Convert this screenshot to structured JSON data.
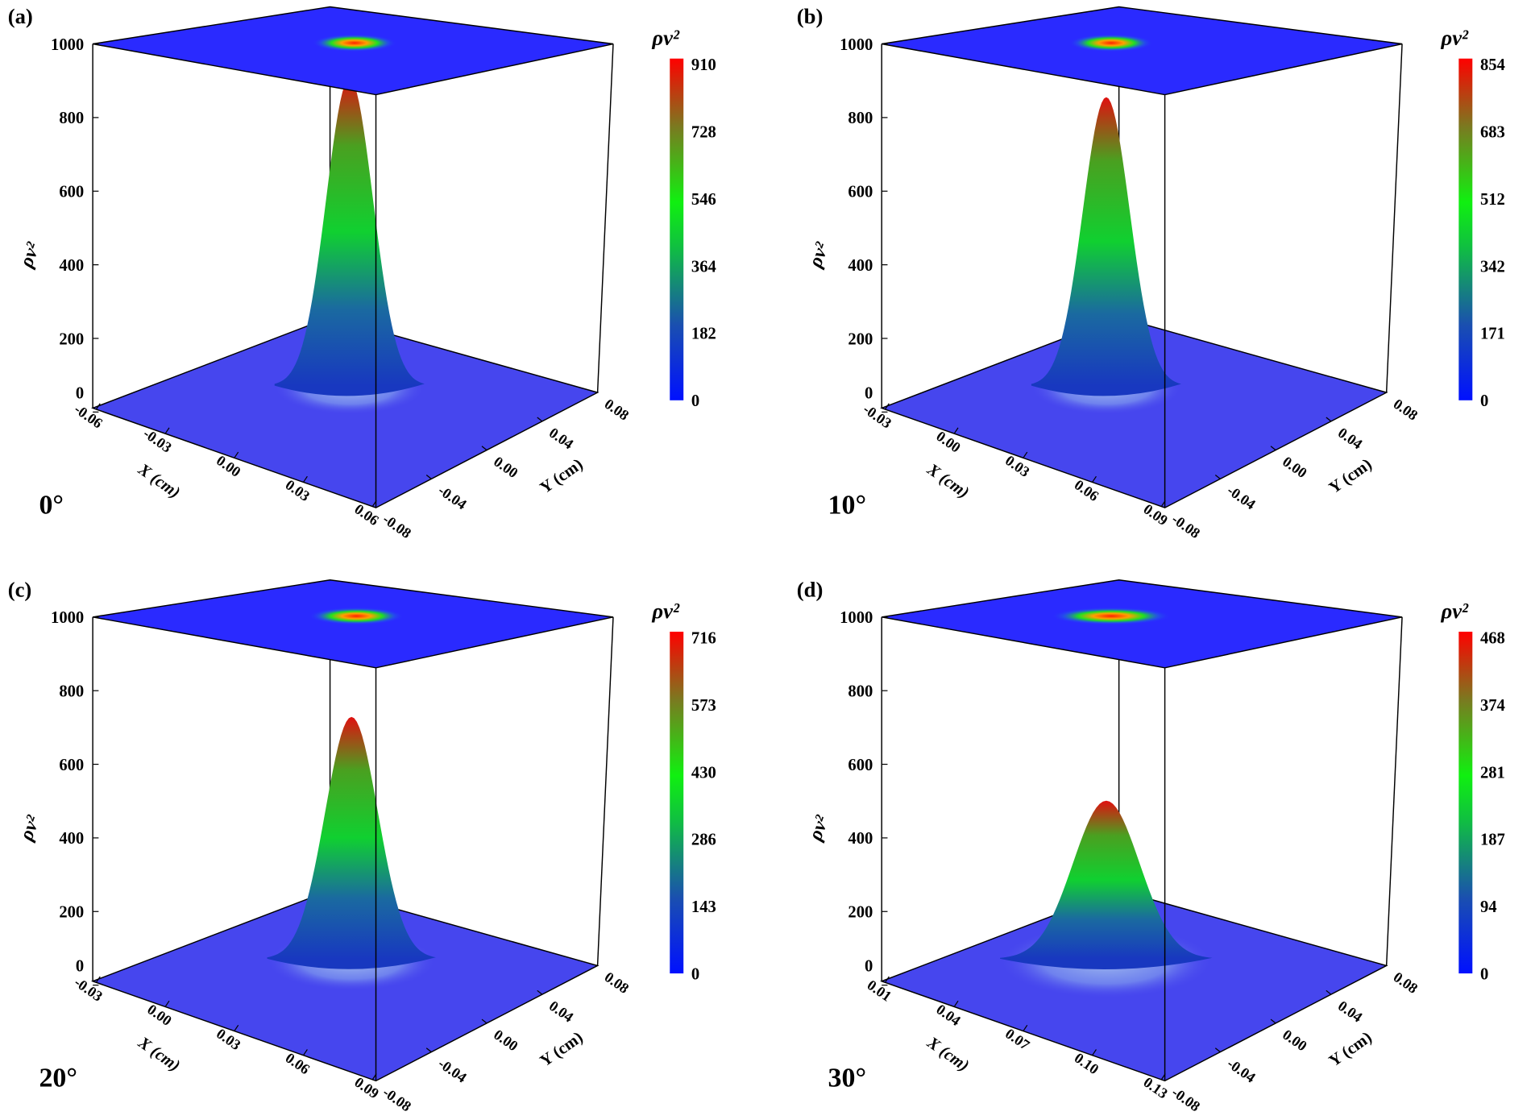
{
  "chart_data": [
    {
      "type": "surface3d",
      "panel_label": "(a)",
      "angle_label": "0°",
      "zlabel": "ρv²",
      "colorbar_title": "ρv²",
      "xlabel": "X (cm)",
      "ylabel": "Y (cm)",
      "z_ticks": [
        "1000",
        "800",
        "600",
        "400",
        "200",
        "0"
      ],
      "x_ticks": [
        "-0.06",
        "-0.03",
        "0.00",
        "0.03",
        "0.06"
      ],
      "y_ticks": [
        "-0.08",
        "-0.04",
        "0.00",
        "0.04",
        "0.08"
      ],
      "colorbar_ticks": [
        "910",
        "728",
        "546",
        "364",
        "182",
        "0"
      ],
      "peak_value": 910,
      "zlim": [
        0,
        1000
      ]
    },
    {
      "type": "surface3d",
      "panel_label": "(b)",
      "angle_label": "10°",
      "zlabel": "ρv²",
      "colorbar_title": "ρv²",
      "xlabel": "X (cm)",
      "ylabel": "Y (cm)",
      "z_ticks": [
        "1000",
        "800",
        "600",
        "400",
        "200",
        "0"
      ],
      "x_ticks": [
        "-0.03",
        "0.00",
        "0.03",
        "0.06",
        "0.09"
      ],
      "y_ticks": [
        "-0.08",
        "-0.04",
        "0.00",
        "0.04",
        "0.08"
      ],
      "colorbar_ticks": [
        "854",
        "683",
        "512",
        "342",
        "171",
        "0"
      ],
      "peak_value": 854,
      "zlim": [
        0,
        1000
      ]
    },
    {
      "type": "surface3d",
      "panel_label": "(c)",
      "angle_label": "20°",
      "zlabel": "ρv²",
      "colorbar_title": "ρv²",
      "xlabel": "X (cm)",
      "ylabel": "Y (cm)",
      "z_ticks": [
        "1000",
        "800",
        "600",
        "400",
        "200",
        "0"
      ],
      "x_ticks": [
        "-0.03",
        "0.00",
        "0.03",
        "0.06",
        "0.09"
      ],
      "y_ticks": [
        "-0.08",
        "-0.04",
        "0.00",
        "0.04",
        "0.08"
      ],
      "colorbar_ticks": [
        "716",
        "573",
        "430",
        "286",
        "143",
        "0"
      ],
      "peak_value": 716,
      "zlim": [
        0,
        1000
      ]
    },
    {
      "type": "surface3d",
      "panel_label": "(d)",
      "angle_label": "30°",
      "zlabel": "ρv²",
      "colorbar_title": "ρv²",
      "xlabel": "X (cm)",
      "ylabel": "Y (cm)",
      "z_ticks": [
        "1000",
        "800",
        "600",
        "400",
        "200",
        "0"
      ],
      "x_ticks": [
        "0.01",
        "0.04",
        "0.07",
        "0.10",
        "0.13"
      ],
      "y_ticks": [
        "-0.08",
        "-0.04",
        "0.00",
        "0.04",
        "0.08"
      ],
      "colorbar_ticks": [
        "468",
        "374",
        "281",
        "187",
        "94",
        "0"
      ],
      "peak_value": 468,
      "zlim": [
        0,
        1000
      ]
    }
  ]
}
